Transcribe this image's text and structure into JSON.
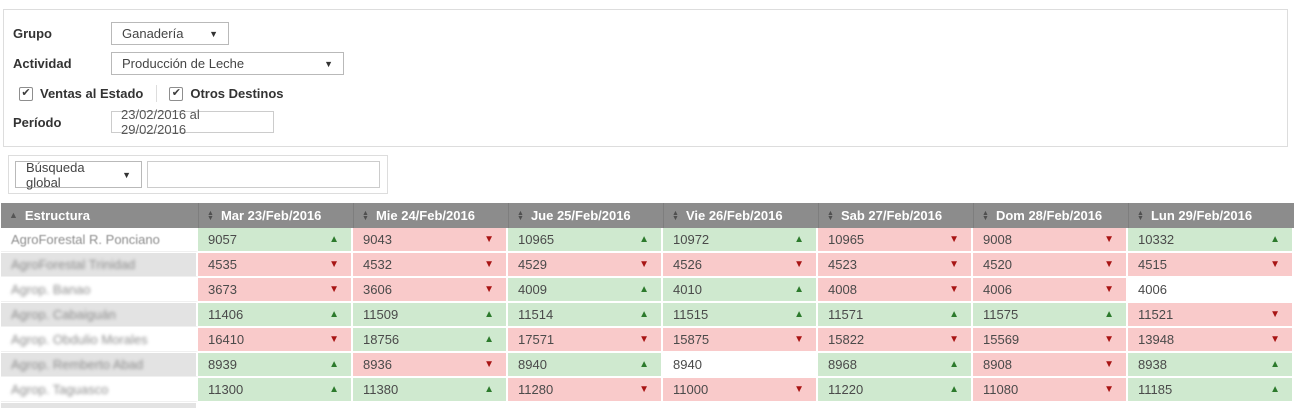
{
  "filters": {
    "grupo": {
      "label": "Grupo",
      "value": "Ganadería"
    },
    "actividad": {
      "label": "Actividad",
      "value": "Producción de Leche"
    },
    "ventas_al_estado": {
      "label": "Ventas al Estado",
      "checked": true,
      "check_glyph": "✔"
    },
    "otros_destinos": {
      "label": "Otros Destinos",
      "checked": true,
      "check_glyph": "✔"
    },
    "periodo": {
      "label": "Período",
      "value": "23/02/2016 al 29/02/2016"
    }
  },
  "search": {
    "scope_selected": "Búsqueda global",
    "query_value": "",
    "query_placeholder": ""
  },
  "icons": {
    "dropdown_caret": "▼",
    "sort_ascending": "▲",
    "sort_both_up": "▲",
    "sort_both_down": "▼",
    "trend_up": "▲",
    "trend_down": "▼"
  },
  "colors": {
    "header_bg": "#8c8c8c",
    "header_text": "#ffffff",
    "positive_bg": "#cfe9cf",
    "negative_bg": "#f9caca",
    "neutral_bg": "#ffffff",
    "up_arrow": "#2c7a2c",
    "down_arrow": "#a81414",
    "row_stripe": "#e3e3e3"
  },
  "table": {
    "columns": [
      {
        "label": "Estructura",
        "sort": "asc"
      },
      {
        "label": "Mar 23/Feb/2016",
        "sort": "both"
      },
      {
        "label": "Mie 24/Feb/2016",
        "sort": "both"
      },
      {
        "label": "Jue 25/Feb/2016",
        "sort": "both"
      },
      {
        "label": "Vie 26/Feb/2016",
        "sort": "both"
      },
      {
        "label": "Sab 27/Feb/2016",
        "sort": "both"
      },
      {
        "label": "Dom 28/Feb/2016",
        "sort": "both"
      },
      {
        "label": "Lun 29/Feb/2016",
        "sort": "both"
      }
    ],
    "rows": [
      {
        "name": "AgroForestal R. Ponciano",
        "cells": [
          {
            "v": "9057",
            "t": "up"
          },
          {
            "v": "9043",
            "t": "down"
          },
          {
            "v": "10965",
            "t": "up"
          },
          {
            "v": "10972",
            "t": "up"
          },
          {
            "v": "10965",
            "t": "down"
          },
          {
            "v": "9008",
            "t": "down"
          },
          {
            "v": "10332",
            "t": "up"
          }
        ]
      },
      {
        "name": "AgroForestal Trinidad",
        "cells": [
          {
            "v": "4535",
            "t": "down"
          },
          {
            "v": "4532",
            "t": "down"
          },
          {
            "v": "4529",
            "t": "down"
          },
          {
            "v": "4526",
            "t": "down"
          },
          {
            "v": "4523",
            "t": "down"
          },
          {
            "v": "4520",
            "t": "down"
          },
          {
            "v": "4515",
            "t": "down"
          }
        ]
      },
      {
        "name": "Agrop. Banao",
        "cells": [
          {
            "v": "3673",
            "t": "down"
          },
          {
            "v": "3606",
            "t": "down"
          },
          {
            "v": "4009",
            "t": "up"
          },
          {
            "v": "4010",
            "t": "up"
          },
          {
            "v": "4008",
            "t": "down"
          },
          {
            "v": "4006",
            "t": "down"
          },
          {
            "v": "4006",
            "t": "none"
          }
        ]
      },
      {
        "name": "Agrop. Cabaiguán",
        "cells": [
          {
            "v": "11406",
            "t": "up"
          },
          {
            "v": "11509",
            "t": "up"
          },
          {
            "v": "11514",
            "t": "up"
          },
          {
            "v": "11515",
            "t": "up"
          },
          {
            "v": "11571",
            "t": "up"
          },
          {
            "v": "11575",
            "t": "up"
          },
          {
            "v": "11521",
            "t": "down"
          }
        ]
      },
      {
        "name": "Agrop. Obdulio Morales",
        "cells": [
          {
            "v": "16410",
            "t": "down"
          },
          {
            "v": "18756",
            "t": "up"
          },
          {
            "v": "17571",
            "t": "down"
          },
          {
            "v": "15875",
            "t": "down"
          },
          {
            "v": "15822",
            "t": "down"
          },
          {
            "v": "15569",
            "t": "down"
          },
          {
            "v": "13948",
            "t": "down"
          }
        ]
      },
      {
        "name": "Agrop. Remberto Abad",
        "cells": [
          {
            "v": "8939",
            "t": "up"
          },
          {
            "v": "8936",
            "t": "down"
          },
          {
            "v": "8940",
            "t": "up"
          },
          {
            "v": "8940",
            "t": "none"
          },
          {
            "v": "8968",
            "t": "up"
          },
          {
            "v": "8908",
            "t": "down"
          },
          {
            "v": "8938",
            "t": "up"
          }
        ]
      },
      {
        "name": "Agrop. Taguasco",
        "cells": [
          {
            "v": "11300",
            "t": "up"
          },
          {
            "v": "11380",
            "t": "up"
          },
          {
            "v": "11280",
            "t": "down"
          },
          {
            "v": "11000",
            "t": "down"
          },
          {
            "v": "11220",
            "t": "up"
          },
          {
            "v": "11080",
            "t": "down"
          },
          {
            "v": "11185",
            "t": "up"
          }
        ]
      }
    ]
  }
}
